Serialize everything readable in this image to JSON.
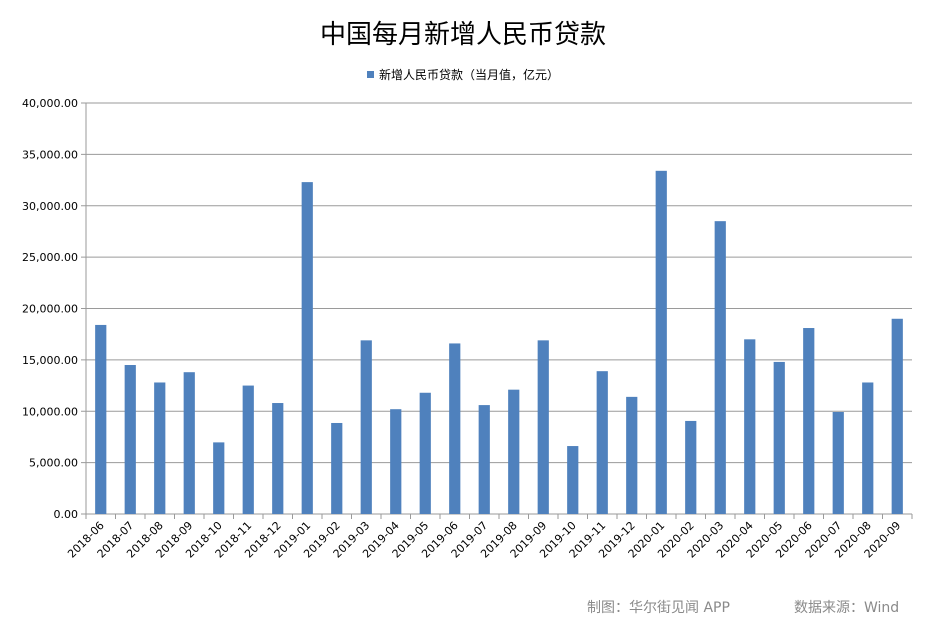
{
  "chart_data": {
    "type": "bar",
    "title": "中国每月新增人民币贷款",
    "xlabel": "",
    "ylabel": "",
    "ylim": [
      0,
      40000
    ],
    "yticks": [
      "0.00",
      "5,000.00",
      "10,000.00",
      "15,000.00",
      "20,000.00",
      "25,000.00",
      "30,000.00",
      "35,000.00",
      "40,000.00"
    ],
    "grid": true,
    "legend_position": "top-center",
    "categories": [
      "2018-06",
      "2018-07",
      "2018-08",
      "2018-09",
      "2018-10",
      "2018-11",
      "2018-12",
      "2019-01",
      "2019-02",
      "2019-03",
      "2019-04",
      "2019-05",
      "2019-06",
      "2019-07",
      "2019-08",
      "2019-09",
      "2019-10",
      "2019-11",
      "2019-12",
      "2020-01",
      "2020-02",
      "2020-03",
      "2020-04",
      "2020-05",
      "2020-06",
      "2020-07",
      "2020-08",
      "2020-09"
    ],
    "series": [
      {
        "name": "新增人民币贷款（当月值，亿元）",
        "color": "#4f81bd",
        "values": [
          18400,
          14500,
          12800,
          13800,
          6970,
          12500,
          10800,
          32300,
          8858,
          16900,
          10200,
          11800,
          16600,
          10600,
          12100,
          16900,
          6613,
          13900,
          11400,
          33400,
          9057,
          28500,
          17000,
          14800,
          18100,
          9927,
          12800,
          19000
        ]
      }
    ]
  },
  "footer": {
    "credit": "制图：华尔街见闻 APP",
    "source": "数据来源：Wind"
  }
}
